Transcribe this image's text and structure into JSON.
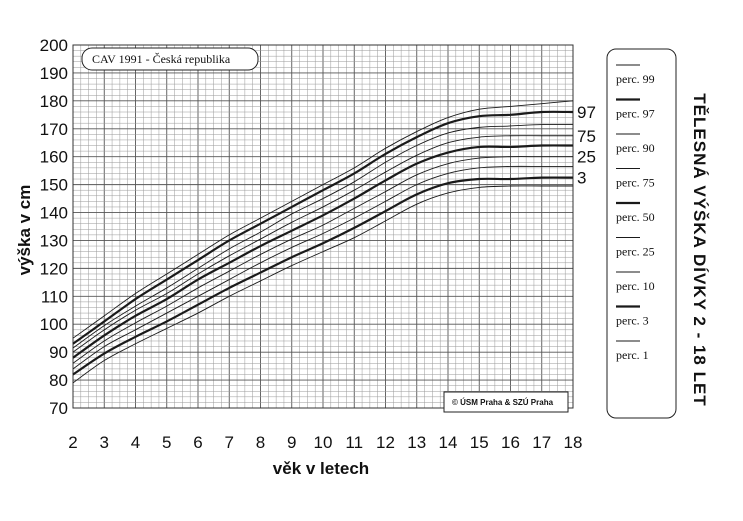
{
  "chart_data": {
    "type": "line",
    "title": "",
    "xlabel": "věk v letech",
    "ylabel": "výška v cm",
    "xlim": [
      2,
      18
    ],
    "ylim": [
      70,
      200
    ],
    "x_ticks": [
      2,
      3,
      4,
      5,
      6,
      7,
      8,
      9,
      10,
      11,
      12,
      13,
      14,
      15,
      16,
      17,
      18
    ],
    "y_ticks": [
      70,
      80,
      90,
      100,
      110,
      120,
      130,
      140,
      150,
      160,
      170,
      180,
      190,
      200
    ],
    "grid": true,
    "x": [
      2,
      3,
      4,
      5,
      6,
      7,
      8,
      9,
      10,
      11,
      12,
      13,
      14,
      15,
      16,
      17,
      18
    ],
    "series": [
      {
        "name": "perc. 99",
        "label": "",
        "bold": false,
        "values": [
          95,
          103,
          111,
          118,
          125,
          132,
          138,
          144,
          150,
          156,
          163,
          169,
          174,
          177,
          178,
          179,
          180
        ]
      },
      {
        "name": "perc. 97",
        "label": "97",
        "bold": true,
        "values": [
          93,
          101,
          109,
          116,
          123,
          130,
          136,
          142,
          148,
          154,
          161,
          167,
          172,
          174.5,
          175,
          176,
          176
        ]
      },
      {
        "name": "perc. 90",
        "label": "",
        "bold": false,
        "values": [
          91.5,
          99.5,
          106.5,
          113,
          120,
          127,
          133,
          139.5,
          145,
          151,
          158,
          164,
          168.5,
          170.5,
          171,
          171.5,
          171.5
        ]
      },
      {
        "name": "perc. 75",
        "label": "75",
        "bold": false,
        "values": [
          90,
          98,
          105,
          111,
          118,
          124.5,
          130.5,
          136.5,
          142,
          148,
          154.5,
          160.5,
          165,
          167,
          167.5,
          167.5,
          167.5
        ]
      },
      {
        "name": "perc. 50",
        "label": "",
        "bold": true,
        "values": [
          88,
          96,
          103,
          109,
          116,
          122,
          128,
          133.5,
          139,
          145,
          151.5,
          157.5,
          161.5,
          163.5,
          163.5,
          164,
          164
        ]
      },
      {
        "name": "perc. 25",
        "label": "25",
        "bold": false,
        "values": [
          86,
          94,
          100.5,
          106.5,
          113,
          119,
          125,
          130.5,
          135.5,
          141.5,
          147.5,
          153.5,
          157.5,
          159.5,
          160,
          160,
          160
        ]
      },
      {
        "name": "perc. 10",
        "label": "",
        "bold": false,
        "values": [
          84,
          92,
          98,
          104,
          110,
          116,
          122,
          127.5,
          132.5,
          138,
          144,
          150,
          154,
          156,
          156.5,
          156.5,
          156.5
        ]
      },
      {
        "name": "perc. 3",
        "label": "3",
        "bold": true,
        "values": [
          82,
          89.5,
          95.5,
          101,
          107,
          113,
          118.5,
          124,
          129,
          134.5,
          140.5,
          146.5,
          150.5,
          152,
          152,
          152.5,
          152.5
        ]
      },
      {
        "name": "perc. 1",
        "label": "",
        "bold": false,
        "values": [
          79,
          87,
          93,
          98.5,
          104,
          110,
          115.5,
          121,
          126,
          131,
          137,
          143,
          147,
          149,
          149.5,
          149.5,
          149.5
        ]
      }
    ],
    "annotation_box": "CAV 1991 - Česká republika",
    "credit": "© ÚSM Praha & SZÚ Praha",
    "side_title": "TĚLESNÁ VÝŠKA DÍVKY 2 - 18 LET",
    "legend": [
      "perc. 99",
      "perc. 97",
      "perc. 90",
      "perc. 75",
      "perc. 50",
      "perc. 25",
      "perc. 10",
      "perc. 3",
      "perc. 1"
    ],
    "legend_placement": "right"
  }
}
